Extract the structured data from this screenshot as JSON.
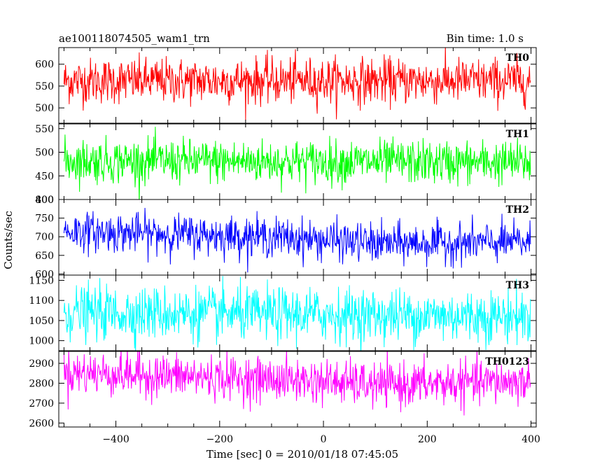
{
  "chart_data": {
    "type": "line",
    "title": "ae100118074505_wam1_trn",
    "bin_time_label": "Bin time: 1.0 s",
    "xlabel": "Time [sec] 0 = 2010/01/18 07:45:05",
    "ylabel": "Counts/sec",
    "xlim": [
      -510,
      410
    ],
    "data_x_range": [
      -500,
      399
    ],
    "x_ticks": [
      -400,
      -200,
      0,
      200,
      400
    ],
    "x_tick_labels": [
      "−400",
      "−200",
      "0",
      "200",
      "400"
    ],
    "grid": false,
    "series": [
      {
        "name": "TH0",
        "color": "#ff0000",
        "ylim": [
          465,
          638
        ],
        "y_ticks": [
          500,
          550,
          600
        ],
        "mean": 562,
        "sigma": 26,
        "trend": [
          [
            -500,
            562
          ],
          [
            400,
            562
          ]
        ]
      },
      {
        "name": "TH1",
        "color": "#00ff00",
        "ylim": [
          400,
          560
        ],
        "y_ticks": [
          400,
          450,
          500,
          550
        ],
        "mean": 480,
        "sigma": 23,
        "trend": [
          [
            -500,
            482
          ],
          [
            400,
            478
          ]
        ]
      },
      {
        "name": "TH2",
        "color": "#0000ff",
        "ylim": [
          597,
          800
        ],
        "y_ticks": [
          600,
          650,
          700,
          750,
          800
        ],
        "mean": 700,
        "sigma": 26,
        "trend": [
          [
            -500,
            715
          ],
          [
            -100,
            700
          ],
          [
            100,
            682
          ],
          [
            400,
            685
          ]
        ]
      },
      {
        "name": "TH3",
        "color": "#00ffff",
        "ylim": [
          975,
          1163
        ],
        "y_ticks": [
          1000,
          1050,
          1100,
          1150
        ],
        "mean": 1065,
        "sigma": 33,
        "trend": [
          [
            -500,
            1070
          ],
          [
            400,
            1060
          ]
        ]
      },
      {
        "name": "TH0123",
        "color": "#ff00ff",
        "ylim": [
          2580,
          2960
        ],
        "y_ticks": [
          2600,
          2700,
          2800,
          2900
        ],
        "mean": 2820,
        "sigma": 55,
        "trend": [
          [
            -500,
            2855
          ],
          [
            0,
            2810
          ],
          [
            100,
            2790
          ],
          [
            400,
            2810
          ]
        ]
      }
    ]
  }
}
